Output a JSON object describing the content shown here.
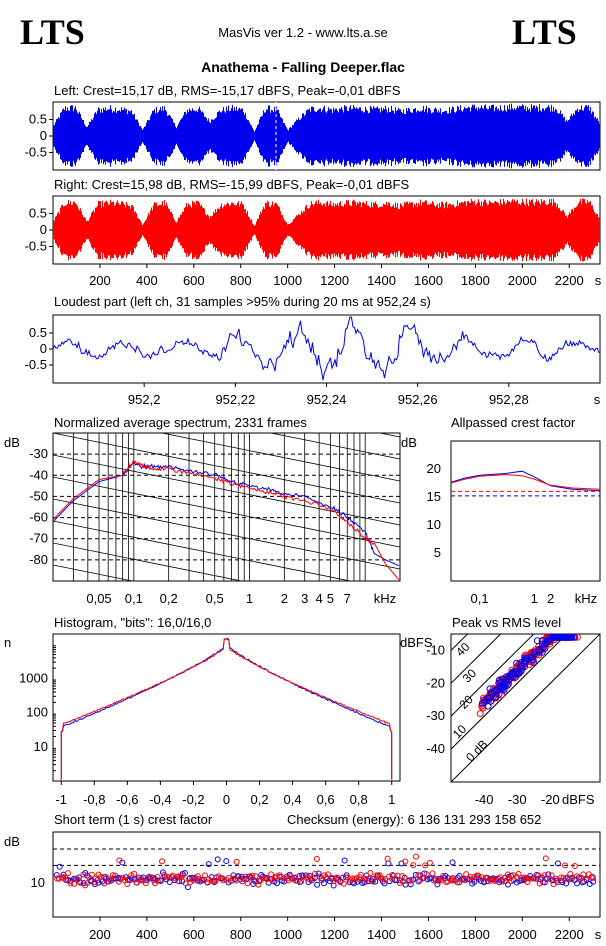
{
  "header": {
    "logo_left": "LTS",
    "logo_right": "LTS",
    "app_title": "MasVis ver 1.2 - www.lts.a.se",
    "file_title": "Anathema - Falling Deeper.flac"
  },
  "colors": {
    "left": "#0000ee",
    "right": "#ff0000",
    "axis": "#000000"
  },
  "chart_data": [
    {
      "id": "left_waveform",
      "type": "area",
      "title": "Left: Crest=15,17 dB, RMS=-15,17 dBFS, Peak=-0,01 dBFS",
      "yticks": [
        "0.5",
        "0",
        "-0.5"
      ],
      "ylim": [
        -1,
        1
      ],
      "xlim": [
        0,
        2331
      ],
      "series": [
        {
          "color": "#0000ee",
          "envelope": [
            0.35,
            0.95,
            0.97,
            0.3,
            0.9,
            0.95,
            0.92,
            0.85,
            0.2,
            0.88,
            0.95,
            0.3,
            0.9,
            0.93,
            0.5,
            0.88,
            0.95,
            0.9,
            0.15,
            0.95,
            0.9,
            0.2,
            0.6,
            0.92,
            0.96,
            0.9,
            0.94,
            0.95,
            0.92,
            0.9,
            0.94,
            0.85,
            0.9,
            0.96,
            0.9,
            0.88,
            0.92,
            0.97,
            0.99,
            0.95,
            0.97,
            0.99,
            0.98,
            0.97,
            0.99,
            0.98,
            0.5,
            0.96,
            0.98,
            0.4
          ]
        }
      ]
    },
    {
      "id": "right_waveform",
      "type": "area",
      "title": "Right: Crest=15,98 dB, RMS=-15,99 dBFS, Peak=-0,01 dBFS",
      "yticks": [
        "0.5",
        "0",
        "-0.5"
      ],
      "ylim": [
        -1,
        1
      ],
      "xlim": [
        0,
        2331
      ],
      "xticks": [
        "200",
        "400",
        "600",
        "800",
        "1000",
        "1200",
        "1400",
        "1600",
        "1800",
        "2000",
        "2200",
        "s"
      ],
      "series": [
        {
          "color": "#ff0000",
          "envelope": [
            0.3,
            0.93,
            0.95,
            0.28,
            0.88,
            0.93,
            0.9,
            0.82,
            0.18,
            0.86,
            0.93,
            0.28,
            0.88,
            0.91,
            0.45,
            0.86,
            0.93,
            0.88,
            0.14,
            0.93,
            0.88,
            0.18,
            0.55,
            0.9,
            0.94,
            0.88,
            0.92,
            0.93,
            0.9,
            0.88,
            0.92,
            0.83,
            0.88,
            0.94,
            0.88,
            0.86,
            0.9,
            0.95,
            0.98,
            0.93,
            0.95,
            0.98,
            0.97,
            0.95,
            0.98,
            0.97,
            0.45,
            0.95,
            0.97,
            0.35
          ]
        }
      ]
    },
    {
      "id": "loudest_part",
      "type": "line",
      "title": "Loudest part (left  ch, 31 samples >95% during 20 ms at 952,24 s)",
      "yticks": [
        "0.5",
        "0",
        "-0.5"
      ],
      "xticks": [
        "952,2",
        "952,22",
        "952,24",
        "952,26",
        "952,28",
        "s"
      ],
      "xlim": [
        952.18,
        952.3
      ],
      "ylim": [
        -1,
        1
      ],
      "series": [
        {
          "color": "#0000ee"
        }
      ]
    },
    {
      "id": "spectrum",
      "type": "line",
      "title": "Normalized average spectrum, 2331 frames",
      "ylabel": "dB",
      "yticks": [
        "-30",
        "-40",
        "-50",
        "-60",
        "-70",
        "-80"
      ],
      "ylim": [
        -90,
        -20
      ],
      "xticks": [
        "0,05",
        "0,1",
        "0,2",
        "0,5",
        "1",
        "2",
        "3",
        "4",
        "5",
        "7",
        "kHz"
      ],
      "xscale": "log",
      "xlim": [
        0.02,
        20
      ],
      "series": [
        {
          "color": "#0000ee",
          "x": [
            0.02,
            0.03,
            0.05,
            0.08,
            0.1,
            0.12,
            0.15,
            0.2,
            0.3,
            0.5,
            0.7,
            1,
            1.5,
            2,
            3,
            5,
            7,
            10,
            12,
            15,
            20
          ],
          "y": [
            -62,
            -52,
            -43,
            -40,
            -34,
            -36,
            -36,
            -36,
            -38,
            -40,
            -43,
            -45,
            -47,
            -49,
            -50,
            -55,
            -60,
            -67,
            -77,
            -80,
            -83
          ]
        },
        {
          "color": "#ff0000",
          "x": [
            0.02,
            0.03,
            0.05,
            0.08,
            0.1,
            0.12,
            0.15,
            0.2,
            0.3,
            0.5,
            0.7,
            1,
            1.5,
            2,
            3,
            5,
            7,
            10,
            12,
            15,
            20
          ],
          "y": [
            -61,
            -51,
            -42,
            -40,
            -33,
            -36,
            -37,
            -37,
            -39,
            -41,
            -44,
            -46,
            -48,
            -50,
            -52,
            -56,
            -62,
            -70,
            -72,
            -82,
            -90
          ]
        }
      ]
    },
    {
      "id": "allpassed_crest",
      "type": "line",
      "title": "Allpassed crest factor",
      "ylabel": "dB",
      "yticks": [
        "20",
        "15",
        "10",
        "5"
      ],
      "ylim": [
        0,
        25
      ],
      "xticks": [
        "0,1",
        "1",
        "2",
        "kHz"
      ],
      "xscale": "log",
      "xlim": [
        0.03,
        16
      ],
      "series": [
        {
          "color": "#0000ee",
          "x": [
            0.03,
            0.05,
            0.1,
            0.3,
            0.6,
            1,
            2,
            5,
            16
          ],
          "y": [
            17.6,
            18.3,
            18.9,
            19.2,
            19.6,
            18.6,
            17.0,
            16.4,
            16.1
          ]
        },
        {
          "color": "#ff0000",
          "x": [
            0.03,
            0.05,
            0.1,
            0.3,
            0.6,
            1,
            2,
            5,
            16
          ],
          "y": [
            17.5,
            18.1,
            18.7,
            19.0,
            18.8,
            18.2,
            17.1,
            16.6,
            16.4
          ]
        }
      ]
    },
    {
      "id": "histogram",
      "type": "line",
      "title": "Histogram, \"bits\": 16,0/16,0",
      "ylabel": "n",
      "yscale": "log",
      "yticks": [
        "1000",
        "100",
        "10"
      ],
      "ylim": [
        1,
        20000
      ],
      "xticks": [
        "-1",
        "-0,8",
        "-0,6",
        "-0,4",
        "-0,2",
        "0",
        "0,2",
        "0,4",
        "0,6",
        "0,8",
        "1"
      ],
      "xlim": [
        -1.05,
        1.05
      ],
      "series": [
        {
          "color": "#0000ee"
        },
        {
          "color": "#ff0000"
        }
      ]
    },
    {
      "id": "peak_vs_rms",
      "type": "scatter",
      "title": "Peak vs RMS level",
      "ylabel": "dBFS",
      "xlabel": "dBFS",
      "yticks": [
        "-10",
        "-20",
        "-30",
        "-40"
      ],
      "xticks": [
        "-40",
        "-30",
        "-20"
      ],
      "xlim": [
        -50,
        -5
      ],
      "ylim": [
        -50,
        -5
      ],
      "diagonal_labels": [
        "40",
        "30",
        "20",
        "10",
        "0 dB"
      ],
      "series": [
        {
          "color": "#0000ee"
        },
        {
          "color": "#ff0000"
        }
      ]
    },
    {
      "id": "short_term_crest",
      "type": "scatter",
      "title": "Short term (1 s) crest factor",
      "annotation": "Checksum (energy):  6 136 131 293 158 652",
      "ylabel": "dB",
      "yticks": [
        "10"
      ],
      "ylim": [
        0,
        25
      ],
      "xlim": [
        0,
        2331
      ],
      "xticks": [
        "200",
        "400",
        "600",
        "800",
        "1000",
        "1200",
        "1400",
        "1600",
        "1800",
        "2000",
        "2200",
        "s"
      ],
      "series": [
        {
          "color": "#0000ee"
        },
        {
          "color": "#ff0000"
        }
      ]
    }
  ]
}
